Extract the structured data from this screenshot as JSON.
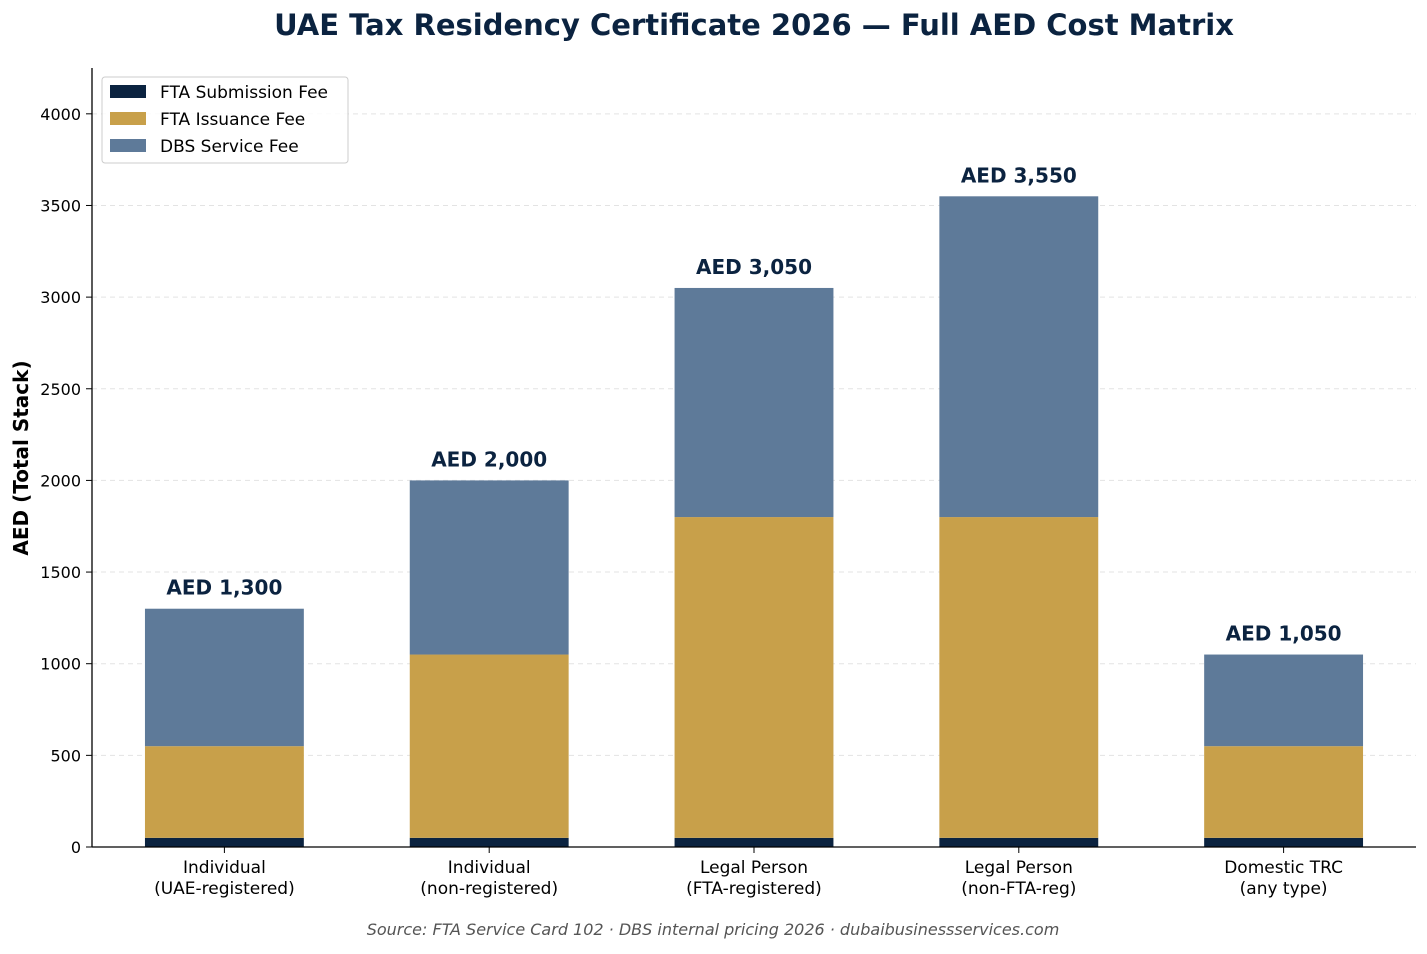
{
  "chart_data": {
    "type": "bar",
    "stacked": true,
    "title": "UAE Tax Residency Certificate 2026 — Full AED Cost Matrix",
    "xlabel": "",
    "ylabel": "AED (Total Stack)",
    "ylim": [
      0,
      4250
    ],
    "yticks": [
      0,
      500,
      1000,
      1500,
      2000,
      2500,
      3000,
      3500,
      4000
    ],
    "grid": "horizontal-dashed",
    "legend_position": "top-left",
    "categories": [
      [
        "Individual",
        "(UAE-registered)"
      ],
      [
        "Individual",
        "(non-registered)"
      ],
      [
        "Legal Person",
        "(FTA-registered)"
      ],
      [
        "Legal Person",
        "(non-FTA-reg)"
      ],
      [
        "Domestic TRC",
        "(any type)"
      ]
    ],
    "series": [
      {
        "name": "FTA Submission Fee",
        "color": "#0b2340",
        "values": [
          50,
          50,
          50,
          50,
          50
        ]
      },
      {
        "name": "FTA Issuance Fee",
        "color": "#c8a04a",
        "values": [
          500,
          1000,
          1750,
          1750,
          500
        ]
      },
      {
        "name": "DBS Service Fee",
        "color": "#5e7a99",
        "values": [
          750,
          950,
          1250,
          1750,
          500
        ]
      }
    ],
    "total_labels": [
      "AED 1,300",
      "AED 2,000",
      "AED 3,050",
      "AED 3,550",
      "AED 1,050"
    ],
    "footnote": "Source: FTA Service Card 102 · DBS internal pricing 2026 · dubaibusinessservices.com"
  }
}
